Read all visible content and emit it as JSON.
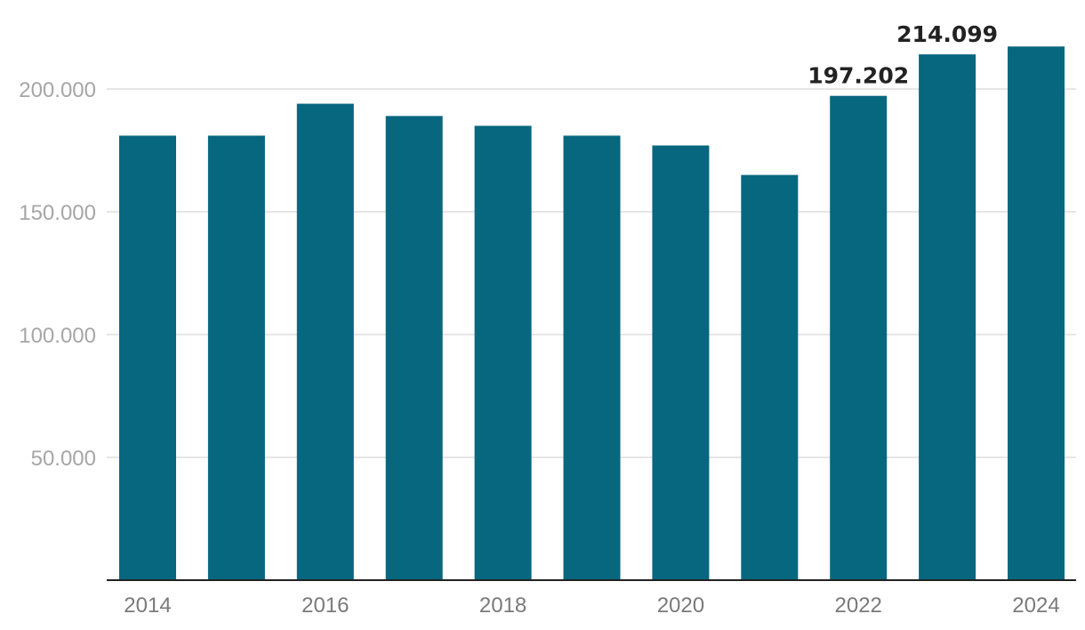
{
  "chart_data": {
    "type": "bar",
    "categories": [
      "2014",
      "2015",
      "2016",
      "2017",
      "2018",
      "2019",
      "2020",
      "2021",
      "2022",
      "2023",
      "2024"
    ],
    "values": [
      181000,
      181000,
      194000,
      189000,
      185000,
      181000,
      177000,
      165000,
      197202,
      214099,
      217300
    ],
    "x_tick_labels": [
      "2014",
      "",
      "2016",
      "",
      "2018",
      "",
      "2020",
      "",
      "2022",
      "",
      "2024"
    ],
    "data_labels": [
      "",
      "",
      "",
      "",
      "",
      "",
      "",
      "",
      "197.202",
      "214.099",
      ""
    ],
    "y_ticks": [
      50000,
      100000,
      150000,
      200000
    ],
    "y_tick_labels": [
      "50.000",
      "100.000",
      "150.000",
      "200.000"
    ],
    "ylim": [
      0,
      200000
    ],
    "grid": true,
    "bar_color": "#07677f"
  }
}
